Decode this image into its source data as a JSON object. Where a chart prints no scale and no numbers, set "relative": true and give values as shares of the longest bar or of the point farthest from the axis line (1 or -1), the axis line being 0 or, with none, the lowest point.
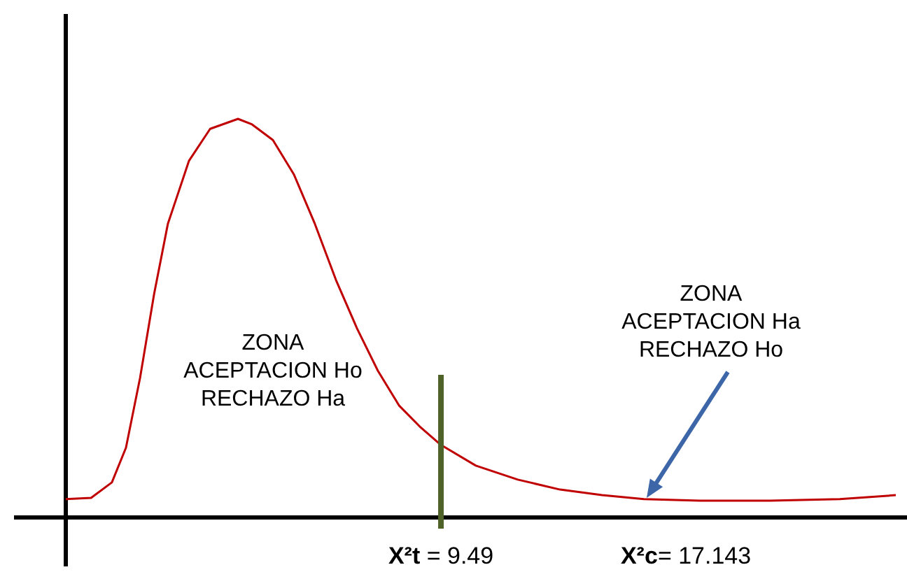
{
  "chart_data": {
    "type": "line",
    "relative": true,
    "xlim": [
      -2.23,
      24.05
    ],
    "xticks": [
      {
        "value": 9.49,
        "label": "X²t = 9.49"
      },
      {
        "value": 17.143,
        "label": "X²c= 17.143"
      }
    ],
    "x": [
      -2.23,
      -1.44,
      -0.79,
      -0.35,
      0.09,
      0.53,
      0.96,
      1.62,
      2.28,
      3.15,
      3.59,
      4.24,
      4.9,
      5.55,
      6.21,
      6.87,
      7.52,
      8.18,
      8.83,
      9.49,
      10.58,
      11.89,
      13.21,
      14.52,
      15.83,
      17.58,
      19.77,
      21.95,
      23.7
    ],
    "series": [
      {
        "color": "#c00000",
        "values": [
          0.046,
          0.049,
          0.088,
          0.175,
          0.35,
          0.561,
          0.737,
          0.895,
          0.975,
          1.0,
          0.986,
          0.947,
          0.86,
          0.737,
          0.596,
          0.474,
          0.368,
          0.281,
          0.228,
          0.182,
          0.13,
          0.095,
          0.07,
          0.056,
          0.046,
          0.042,
          0.042,
          0.046,
          0.056
        ]
      }
    ],
    "line_style": "solid",
    "ref_lines": [
      {
        "axis": "x",
        "value": 9.49,
        "color": "#4f6228"
      }
    ],
    "annotations": [
      "ZONA\nACEPTACION Ho\nRECHAZO Ha",
      "ZONA\nACEPTACION Ha\nRECHAZO Ho"
    ]
  }
}
